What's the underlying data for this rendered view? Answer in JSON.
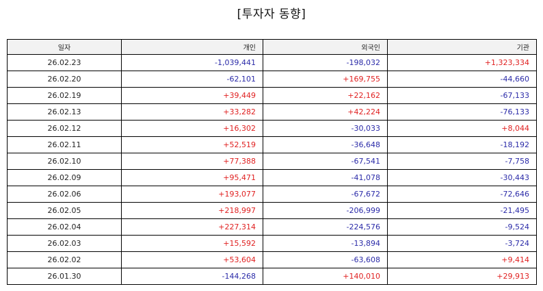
{
  "title": "[투자자 동향]",
  "colors": {
    "positive": "#e02020",
    "negative": "#2a2aa8",
    "header_bg": "#f2f2f2"
  },
  "table": {
    "headers": [
      "일자",
      "개인",
      "외국인",
      "기관"
    ],
    "rows": [
      {
        "date": "26.02.23",
        "individual": "-1,039,441",
        "foreign": "-198,032",
        "institution": "+1,323,334"
      },
      {
        "date": "26.02.20",
        "individual": "-62,101",
        "foreign": "+169,755",
        "institution": "-44,660"
      },
      {
        "date": "26.02.19",
        "individual": "+39,449",
        "foreign": "+22,162",
        "institution": "-67,133"
      },
      {
        "date": "26.02.13",
        "individual": "+33,282",
        "foreign": "+42,224",
        "institution": "-76,133"
      },
      {
        "date": "26.02.12",
        "individual": "+16,302",
        "foreign": "-30,033",
        "institution": "+8,044"
      },
      {
        "date": "26.02.11",
        "individual": "+52,519",
        "foreign": "-36,648",
        "institution": "-18,192"
      },
      {
        "date": "26.02.10",
        "individual": "+77,388",
        "foreign": "-67,541",
        "institution": "-7,758"
      },
      {
        "date": "26.02.09",
        "individual": "+95,471",
        "foreign": "-41,078",
        "institution": "-30,443"
      },
      {
        "date": "26.02.06",
        "individual": "+193,077",
        "foreign": "-67,672",
        "institution": "-72,646"
      },
      {
        "date": "26.02.05",
        "individual": "+218,997",
        "foreign": "-206,999",
        "institution": "-21,495"
      },
      {
        "date": "26.02.04",
        "individual": "+227,314",
        "foreign": "-224,576",
        "institution": "-9,524"
      },
      {
        "date": "26.02.03",
        "individual": "+15,592",
        "foreign": "-13,894",
        "institution": "-3,724"
      },
      {
        "date": "26.02.02",
        "individual": "+53,604",
        "foreign": "-63,608",
        "institution": "+9,414"
      },
      {
        "date": "26.01.30",
        "individual": "-144,268",
        "foreign": "+140,010",
        "institution": "+29,913"
      }
    ]
  }
}
